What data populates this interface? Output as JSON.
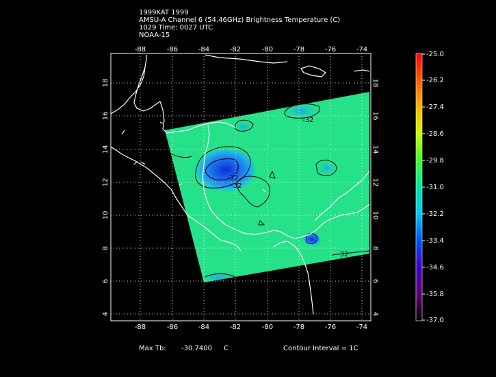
{
  "header": {
    "line1": "1999KAT 1999",
    "line2": "AMSU-A Channel 6 (54.46GHz) Brightness Temperature (C)",
    "line3": "1029 Time: 0027 UTC",
    "line4": "NOAA-15"
  },
  "map": {
    "lon_ticks": [
      "-88",
      "-86",
      "-84",
      "-82",
      "-80",
      "-78",
      "-76",
      "-74"
    ],
    "lat_ticks": [
      "18",
      "16",
      "14",
      "12",
      "10",
      "8",
      "6",
      "4"
    ],
    "contour_labels": [
      "-32",
      "-32",
      "-32",
      "-32"
    ],
    "swath_color": "#1ee18c"
  },
  "colorbar": {
    "labels": [
      "-25.0",
      "-26.2",
      "-27.4",
      "-28.6",
      "-29.8",
      "-31.0",
      "-32.2",
      "-33.4",
      "-34.6",
      "-35.8",
      "-37.0"
    ]
  },
  "footer": {
    "max_tb_label": "Max Tb:",
    "max_tb_value": "-30.7400",
    "max_tb_unit": "C",
    "contour_interval": "Contour Interval = 1C"
  }
}
